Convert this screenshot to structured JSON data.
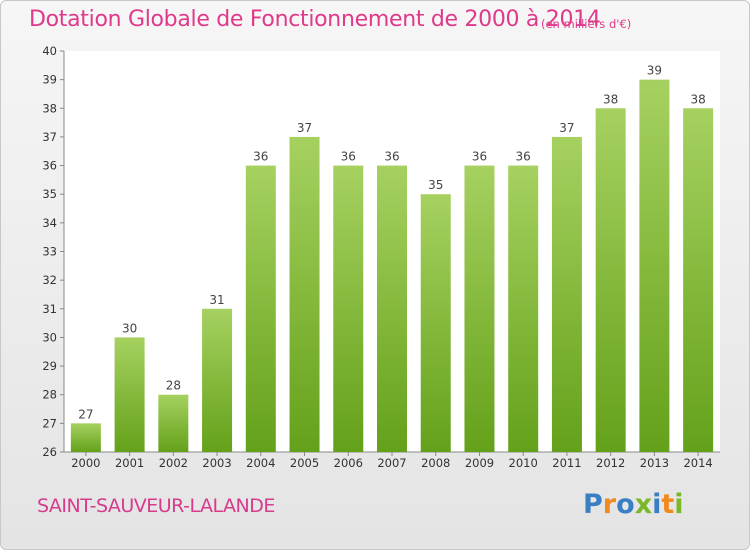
{
  "header": {
    "title": "Dotation Globale de Fonctionnement de 2000 à 2014",
    "unit": "(en milliers d'€)"
  },
  "footer": {
    "commune": "SAINT-SAUVEUR-LALANDE",
    "logo_text": "Proxiti"
  },
  "colors": {
    "bar_light": "#a6d160",
    "bar_dark": "#64a11a",
    "title": "#e0398a",
    "logo": [
      "#3a7fc4",
      "#f08a1c",
      "#3a7fc4",
      "#7ab829",
      "#3a7fc4",
      "#f08a1c",
      "#7ab829"
    ]
  },
  "chart_data": {
    "type": "bar",
    "title": "Dotation Globale de Fonctionnement de 2000 à 2014",
    "subtitle": "(en milliers d'€)",
    "xlabel": "",
    "ylabel": "",
    "categories": [
      "2000",
      "2001",
      "2002",
      "2003",
      "2004",
      "2005",
      "2006",
      "2007",
      "2008",
      "2009",
      "2010",
      "2011",
      "2012",
      "2013",
      "2014"
    ],
    "values": [
      27,
      30,
      28,
      31,
      36,
      37,
      36,
      36,
      35,
      36,
      36,
      37,
      38,
      39,
      38
    ],
    "data_labels": true,
    "ylim": [
      26,
      40
    ],
    "yticks": [
      26,
      27,
      28,
      29,
      30,
      31,
      32,
      33,
      34,
      35,
      36,
      37,
      38,
      39,
      40
    ],
    "grid": false
  }
}
